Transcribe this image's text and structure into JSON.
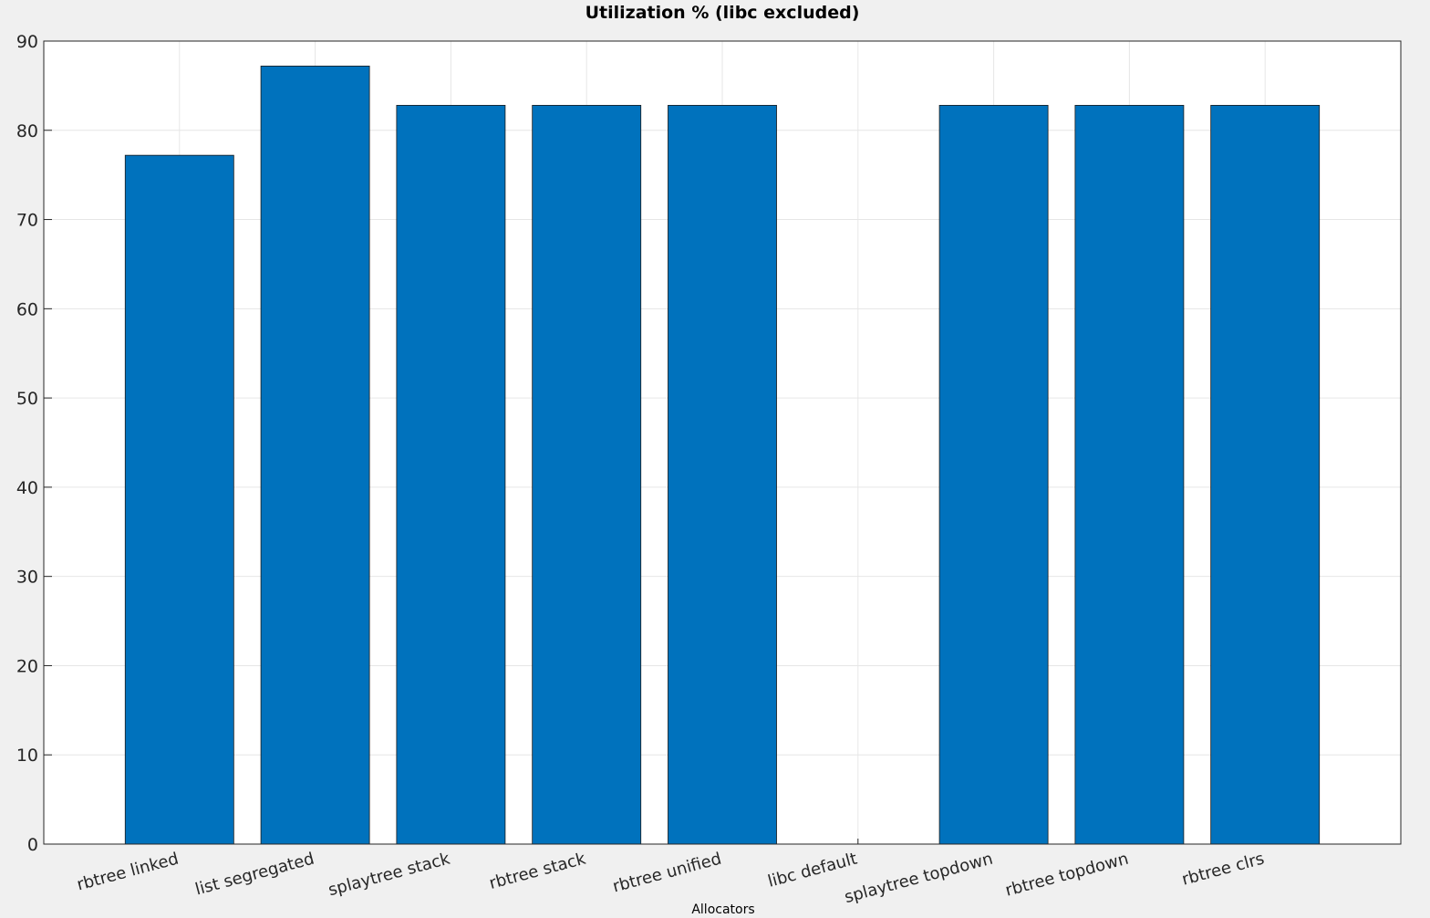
{
  "chart_data": {
    "type": "bar",
    "title": "Utilization % (libc excluded)",
    "xlabel": "Allocators",
    "ylabel": "",
    "categories": [
      "rbtree linked",
      "list segregated",
      "splaytree stack",
      "rbtree stack",
      "rbtree unified",
      "libc default",
      "splaytree topdown",
      "rbtree topdown",
      "rbtree clrs"
    ],
    "values": [
      77.2,
      87.2,
      82.8,
      82.8,
      82.8,
      0,
      82.8,
      82.8,
      82.8
    ],
    "ylim": [
      0,
      90
    ],
    "yticks": [
      "0",
      "10",
      "20",
      "30",
      "40",
      "50",
      "60",
      "70",
      "80",
      "90"
    ],
    "grid": true,
    "bar_color": "#0072bd"
  }
}
